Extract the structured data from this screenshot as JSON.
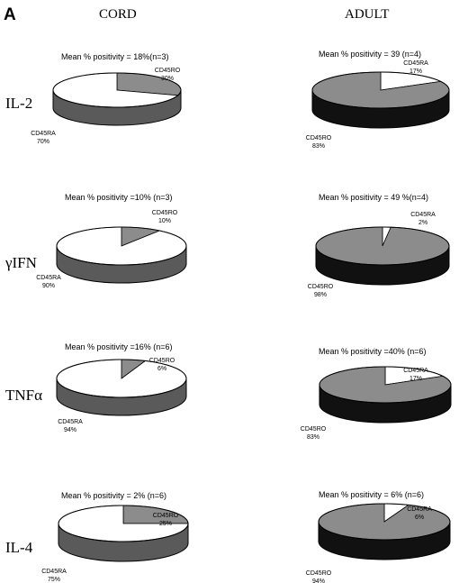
{
  "panel_letter": "A",
  "columns": {
    "cord": "CORD",
    "adult": "ADULT"
  },
  "rows": [
    "IL-2",
    "γIFN",
    "TNFα",
    "IL-4"
  ],
  "colors": {
    "ra_slice": "#ffffff",
    "ro_slice": "#8c8c8c",
    "edge_light": "#5a5a5a",
    "edge_dark": "#111111",
    "stroke": "#000000"
  },
  "chart_data": [
    {
      "type": "pie",
      "column": "CORD",
      "row": "IL-2",
      "title": "Mean % positivity = 18%(n=3)",
      "slices": [
        {
          "name": "CD45RO",
          "value_label": "30%",
          "value": 30
        },
        {
          "name": "CD45RA",
          "value_label": "70%",
          "value": 70
        }
      ]
    },
    {
      "type": "pie",
      "column": "ADULT",
      "row": "IL-2",
      "title": "Mean % positivity = 39 (n=4)",
      "slices": [
        {
          "name": "CD45RA",
          "value_label": "17%",
          "value": 17
        },
        {
          "name": "CD45RO",
          "value_label": "83%",
          "value": 83
        }
      ]
    },
    {
      "type": "pie",
      "column": "CORD",
      "row": "γIFN",
      "title": "Mean % positivity =10% (n=3)",
      "slices": [
        {
          "name": "CD45RO",
          "value_label": "10%",
          "value": 10
        },
        {
          "name": "CD45RA",
          "value_label": "90%",
          "value": 90
        }
      ]
    },
    {
      "type": "pie",
      "column": "ADULT",
      "row": "γIFN",
      "title": "Mean % positivity = 49 %(n=4)",
      "slices": [
        {
          "name": "CD45RA",
          "value_label": "2%",
          "value": 2
        },
        {
          "name": "CD45RO",
          "value_label": "98%",
          "value": 98
        }
      ]
    },
    {
      "type": "pie",
      "column": "CORD",
      "row": "TNFα",
      "title": "Mean % positivity =16% (n=6)",
      "slices": [
        {
          "name": "CD45RO",
          "value_label": "6%",
          "value": 6
        },
        {
          "name": "CD45RA",
          "value_label": "94%",
          "value": 94
        }
      ]
    },
    {
      "type": "pie",
      "column": "ADULT",
      "row": "TNFα",
      "title": "Mean % positivity =40% (n=6)",
      "slices": [
        {
          "name": "CD45RA",
          "value_label": "17%",
          "value": 17
        },
        {
          "name": "CD45RO",
          "value_label": "83%",
          "value": 83
        }
      ]
    },
    {
      "type": "pie",
      "column": "CORD",
      "row": "IL-4",
      "title": "Mean % positivity = 2% (n=6)",
      "slices": [
        {
          "name": "CD45RO",
          "value_label": "25%",
          "value": 25
        },
        {
          "name": "CD45RA",
          "value_label": "75%",
          "value": 75
        }
      ]
    },
    {
      "type": "pie",
      "column": "ADULT",
      "row": "IL-4",
      "title": "Mean % positivity = 6% (n=6)",
      "slices": [
        {
          "name": "CD45RA",
          "value_label": "6%",
          "value": 6
        },
        {
          "name": "CD45RO",
          "value_label": "94%",
          "value": 94
        }
      ]
    }
  ]
}
